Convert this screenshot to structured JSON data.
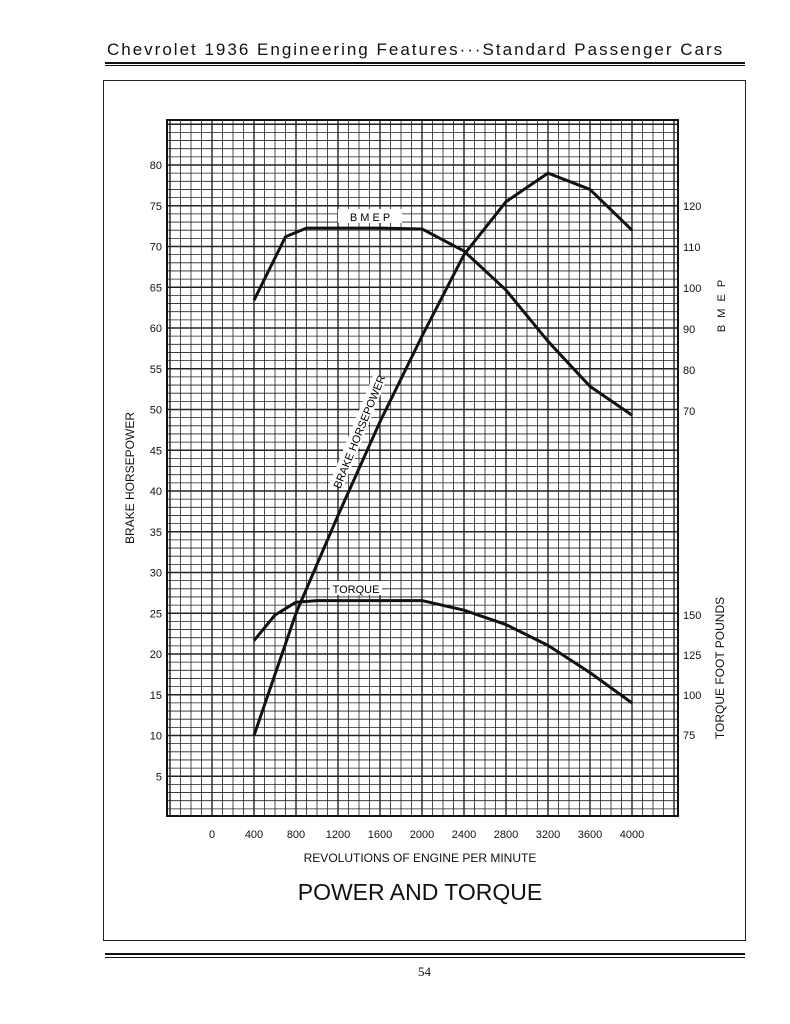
{
  "header": {
    "title": "Chevrolet 1936 Engineering Features···Standard Passenger Cars"
  },
  "page_number": "54",
  "chart_data": {
    "type": "line",
    "title": "POWER AND TORQUE",
    "xlabel": "REVOLUTIONS OF ENGINE PER MINUTE",
    "ylabel_left": "BRAKE HORSEPOWER",
    "ylabel_right_bmep": "B M E P",
    "ylabel_right_torque": "TORQUE   FOOT POUNDS",
    "x_ticks": [
      "0",
      "400",
      "800",
      "1200",
      "1600",
      "2000",
      "2400",
      "2800",
      "3200",
      "3600",
      "4000"
    ],
    "y_left_ticks": [
      "5",
      "10",
      "15",
      "20",
      "25",
      "30",
      "35",
      "40",
      "45",
      "50",
      "55",
      "60",
      "65",
      "70",
      "75",
      "80"
    ],
    "bmep_ticks": [
      "70",
      "80",
      "90",
      "100",
      "110",
      "120"
    ],
    "torque_ticks": [
      "75",
      "100",
      "125",
      "150"
    ],
    "grid": true,
    "series": [
      {
        "name": "BRAKE HORSEPOWER",
        "axis": "left",
        "x": [
          400,
          800,
          1200,
          1600,
          2000,
          2400,
          2800,
          3200,
          3600,
          4000
        ],
        "y": [
          10,
          25,
          37,
          48.5,
          59,
          69,
          75.5,
          79,
          77,
          72
        ]
      },
      {
        "name": "B M E P",
        "axis": "bmep",
        "x": [
          400,
          700,
          900,
          1200,
          1600,
          2000,
          2400,
          2800,
          3200,
          3600,
          4000
        ],
        "y": [
          97,
          112.5,
          114.6,
          114.6,
          114.6,
          114.4,
          109,
          99.5,
          87,
          76,
          69
        ]
      },
      {
        "name": "TORQUE",
        "axis": "torque",
        "x": [
          400,
          600,
          800,
          1000,
          1600,
          2000,
          2400,
          2800,
          3200,
          3600,
          4000
        ],
        "y": [
          134,
          150,
          158,
          159,
          159,
          159,
          153,
          144,
          131,
          114,
          95
        ]
      }
    ]
  }
}
